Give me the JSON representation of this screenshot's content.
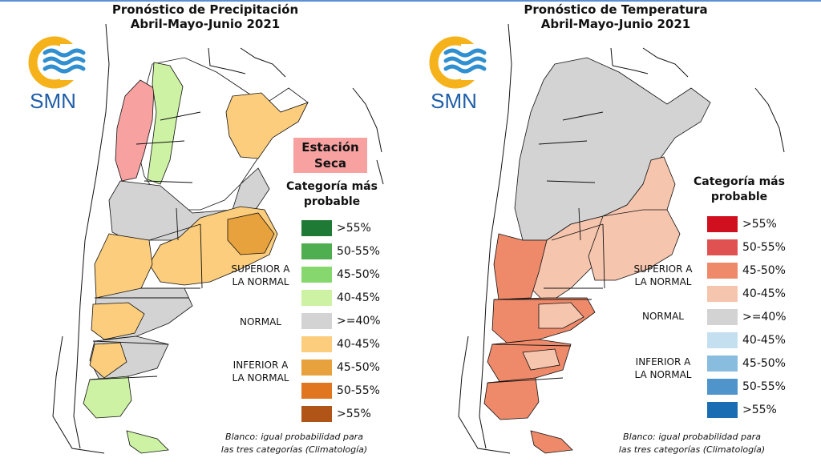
{
  "panels": {
    "precipitation": {
      "title_line1": "Pronóstico de Precipitación",
      "title_line2": "Abril-Mayo-Junio 2021",
      "logo_text": "SMN",
      "dry_label_line1": "Estación",
      "dry_label_line2": "Seca",
      "legend_title_line1": "Categoría más",
      "legend_title_line2": "probable",
      "legend": [
        {
          "label": ">55%",
          "color": "#1e7a34"
        },
        {
          "label": "50-55%",
          "color": "#4fae4f"
        },
        {
          "label": "45-50%",
          "color": "#86d86e"
        },
        {
          "label": "40-45%",
          "color": "#cdf2a4"
        },
        {
          "label": ">=40%",
          "color": "#d3d3d3"
        },
        {
          "label": "40-45%",
          "color": "#fbcd7c"
        },
        {
          "label": "45-50%",
          "color": "#e8a23d"
        },
        {
          "label": "50-55%",
          "color": "#e07620"
        },
        {
          "label": ">55%",
          "color": "#b05418"
        }
      ],
      "cat_superior_line1": "SUPERIOR A",
      "cat_superior_line2": "LA NORMAL",
      "cat_normal": "NORMAL",
      "cat_inferior_line1": "INFERIOR A",
      "cat_inferior_line2": "LA NORMAL",
      "note_line1": "Blanco: igual probabilidad para",
      "note_line2": "las tres categorías (Climatología)"
    },
    "temperature": {
      "title_line1": "Pronóstico de Temperatura",
      "title_line2": "Abril-Mayo-Junio 2021",
      "logo_text": "SMN",
      "legend_title_line1": "Categoría más",
      "legend_title_line2": "probable",
      "legend": [
        {
          "label": ">55%",
          "color": "#d1101f"
        },
        {
          "label": "50-55%",
          "color": "#e05252"
        },
        {
          "label": "45-50%",
          "color": "#ee8a6a"
        },
        {
          "label": "40-45%",
          "color": "#f6c5ae"
        },
        {
          "label": ">=40%",
          "color": "#d3d3d3"
        },
        {
          "label": "40-45%",
          "color": "#c4e0f0"
        },
        {
          "label": "45-50%",
          "color": "#88bde0"
        },
        {
          "label": "50-55%",
          "color": "#4f95cc"
        },
        {
          "label": ">55%",
          "color": "#1a6db3"
        }
      ],
      "cat_superior_line1": "SUPERIOR A",
      "cat_superior_line2": "LA NORMAL",
      "cat_normal": "NORMAL",
      "cat_inferior_line1": "INFERIOR A",
      "cat_inferior_line2": "LA NORMAL",
      "note_line1": "Blanco: igual probabilidad para",
      "note_line2": "las tres categorías (Climatología)"
    }
  },
  "map_colors": {
    "dry": "#f7a1a1",
    "green": "#cdf2a4",
    "gray": "#d3d3d3",
    "orange1": "#fbcd7c",
    "orange2": "#e8a23d",
    "temp_light": "#f6c5ae",
    "temp_mid": "#ee8a6a",
    "logo_ring": "#f5b21a",
    "logo_waves": "#2f8fd0"
  }
}
